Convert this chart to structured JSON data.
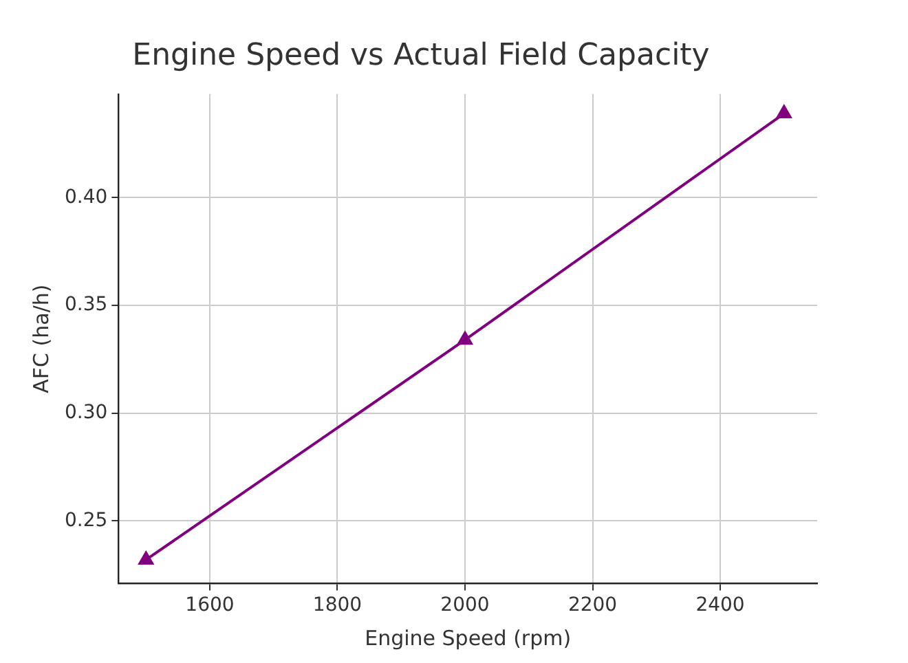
{
  "chart_data": {
    "type": "line",
    "title": "Engine Speed vs Actual Field Capacity",
    "xlabel": "Engine Speed (rpm)",
    "ylabel": "AFC (ha/h)",
    "x": [
      1500,
      2000,
      2500
    ],
    "series": [
      {
        "color": "#800080",
        "values": [
          0.232,
          0.334,
          0.439
        ]
      }
    ],
    "xlim": [
      1457,
      2552
    ],
    "xticks": [
      1600,
      1800,
      2000,
      2200,
      2400
    ],
    "ylim": [
      0.221,
      0.448
    ],
    "yticks": [
      {
        "value": 0.25,
        "label": "0.25"
      },
      {
        "value": 0.3,
        "label": "0.30"
      },
      {
        "value": 0.35,
        "label": "0.35"
      },
      {
        "value": 0.4,
        "label": "0.40"
      }
    ],
    "grid": true,
    "marker": "triangle",
    "line_style": "solid",
    "legend": false
  }
}
